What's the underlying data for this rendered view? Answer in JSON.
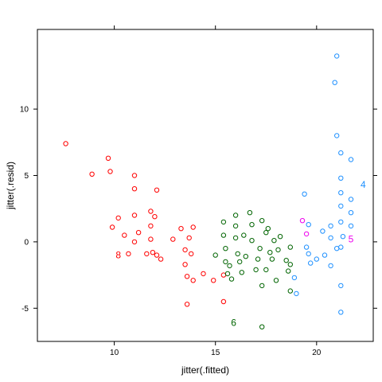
{
  "chart_data": {
    "type": "scatter",
    "title": "",
    "xlabel": "jitter(.fitted)",
    "ylabel": "jitter(.resid)",
    "xlim": [
      6.2,
      22.8
    ],
    "ylim": [
      -7.5,
      16.0
    ],
    "x_ticks": [
      10,
      15,
      20
    ],
    "y_ticks": [
      -5,
      0,
      5,
      10
    ],
    "x_tick_labels": [
      "10",
      "15",
      "20"
    ],
    "y_tick_labels": [
      "-5",
      "0",
      "5",
      "10"
    ],
    "grid": false,
    "legend": "none",
    "series": [
      {
        "color": "#ff0000",
        "label": "8",
        "label_x": 10.2,
        "label_y": -1.0,
        "points": [
          [
            7.6,
            7.4
          ],
          [
            8.9,
            5.1
          ],
          [
            9.7,
            6.3
          ],
          [
            9.8,
            5.3
          ],
          [
            9.9,
            1.1
          ],
          [
            10.2,
            1.8
          ],
          [
            10.5,
            0.5
          ],
          [
            10.7,
            -0.9
          ],
          [
            11.0,
            5.0
          ],
          [
            11.0,
            4.0
          ],
          [
            11.0,
            2.0
          ],
          [
            11.0,
            0.0
          ],
          [
            11.2,
            0.7
          ],
          [
            11.6,
            -0.9
          ],
          [
            11.8,
            2.3
          ],
          [
            11.8,
            1.2
          ],
          [
            11.8,
            0.2
          ],
          [
            11.9,
            -0.8
          ],
          [
            12.0,
            1.9
          ],
          [
            12.1,
            3.9
          ],
          [
            12.1,
            -1.0
          ],
          [
            12.3,
            -1.3
          ],
          [
            12.9,
            0.2
          ],
          [
            13.3,
            1.0
          ],
          [
            13.5,
            -0.6
          ],
          [
            13.5,
            -1.7
          ],
          [
            13.6,
            -2.6
          ],
          [
            13.7,
            0.3
          ],
          [
            13.8,
            -0.9
          ],
          [
            13.9,
            1.1
          ],
          [
            13.9,
            -2.9
          ],
          [
            14.4,
            -2.4
          ],
          [
            14.9,
            -2.9
          ],
          [
            15.4,
            -4.5
          ],
          [
            15.4,
            -2.5
          ],
          [
            13.6,
            -4.7
          ]
        ]
      },
      {
        "color": "#006400",
        "label": "6",
        "label_x": 15.9,
        "label_y": -6.1,
        "points": [
          [
            15.0,
            -1.0
          ],
          [
            15.4,
            1.5
          ],
          [
            15.4,
            0.5
          ],
          [
            15.5,
            -0.5
          ],
          [
            15.5,
            -1.5
          ],
          [
            15.6,
            -2.4
          ],
          [
            15.7,
            -1.8
          ],
          [
            15.8,
            -2.8
          ],
          [
            16.0,
            2.0
          ],
          [
            16.0,
            1.2
          ],
          [
            16.0,
            0.3
          ],
          [
            16.1,
            -0.9
          ],
          [
            16.2,
            -1.5
          ],
          [
            16.3,
            -2.3
          ],
          [
            16.4,
            0.5
          ],
          [
            16.5,
            -1.1
          ],
          [
            16.7,
            2.2
          ],
          [
            16.8,
            1.3
          ],
          [
            16.8,
            0.1
          ],
          [
            17.0,
            -2.1
          ],
          [
            17.1,
            -1.3
          ],
          [
            17.2,
            -0.5
          ],
          [
            17.3,
            1.6
          ],
          [
            17.3,
            -3.3
          ],
          [
            17.3,
            -6.4
          ],
          [
            17.5,
            -2.1
          ],
          [
            17.5,
            0.7
          ],
          [
            17.6,
            1.0
          ],
          [
            17.7,
            -0.8
          ],
          [
            17.8,
            -1.3
          ],
          [
            17.9,
            0.1
          ],
          [
            18.0,
            -2.9
          ],
          [
            18.1,
            -0.6
          ],
          [
            18.2,
            0.4
          ],
          [
            18.5,
            -1.4
          ],
          [
            18.6,
            -2.2
          ],
          [
            18.7,
            -1.7
          ],
          [
            18.7,
            -3.7
          ],
          [
            18.7,
            -0.4
          ]
        ]
      },
      {
        "color": "#1e90ff",
        "label": "4",
        "label_x": 22.3,
        "label_y": 4.3,
        "points": [
          [
            18.9,
            -2.7
          ],
          [
            19.0,
            -3.9
          ],
          [
            19.4,
            3.6
          ],
          [
            19.5,
            -0.4
          ],
          [
            19.6,
            -0.9
          ],
          [
            19.6,
            1.3
          ],
          [
            19.7,
            -1.6
          ],
          [
            20.0,
            -1.3
          ],
          [
            20.3,
            0.8
          ],
          [
            20.4,
            -1.0
          ],
          [
            20.7,
            1.2
          ],
          [
            20.7,
            0.3
          ],
          [
            20.7,
            -1.8
          ],
          [
            20.9,
            12.0
          ],
          [
            21.0,
            14.0
          ],
          [
            21.0,
            8.0
          ],
          [
            21.0,
            -0.5
          ],
          [
            21.2,
            6.7
          ],
          [
            21.2,
            4.8
          ],
          [
            21.2,
            3.7
          ],
          [
            21.2,
            2.7
          ],
          [
            21.2,
            1.5
          ],
          [
            21.2,
            -0.4
          ],
          [
            21.2,
            -3.3
          ],
          [
            21.2,
            -5.3
          ],
          [
            21.3,
            0.4
          ],
          [
            21.7,
            6.2
          ],
          [
            21.7,
            3.2
          ],
          [
            21.7,
            2.2
          ],
          [
            21.7,
            1.2
          ]
        ]
      },
      {
        "color": "#ee00ee",
        "label": "5",
        "label_x": 21.7,
        "label_y": 0.2,
        "points": [
          [
            19.3,
            1.6
          ],
          [
            19.5,
            0.6
          ]
        ]
      }
    ]
  }
}
